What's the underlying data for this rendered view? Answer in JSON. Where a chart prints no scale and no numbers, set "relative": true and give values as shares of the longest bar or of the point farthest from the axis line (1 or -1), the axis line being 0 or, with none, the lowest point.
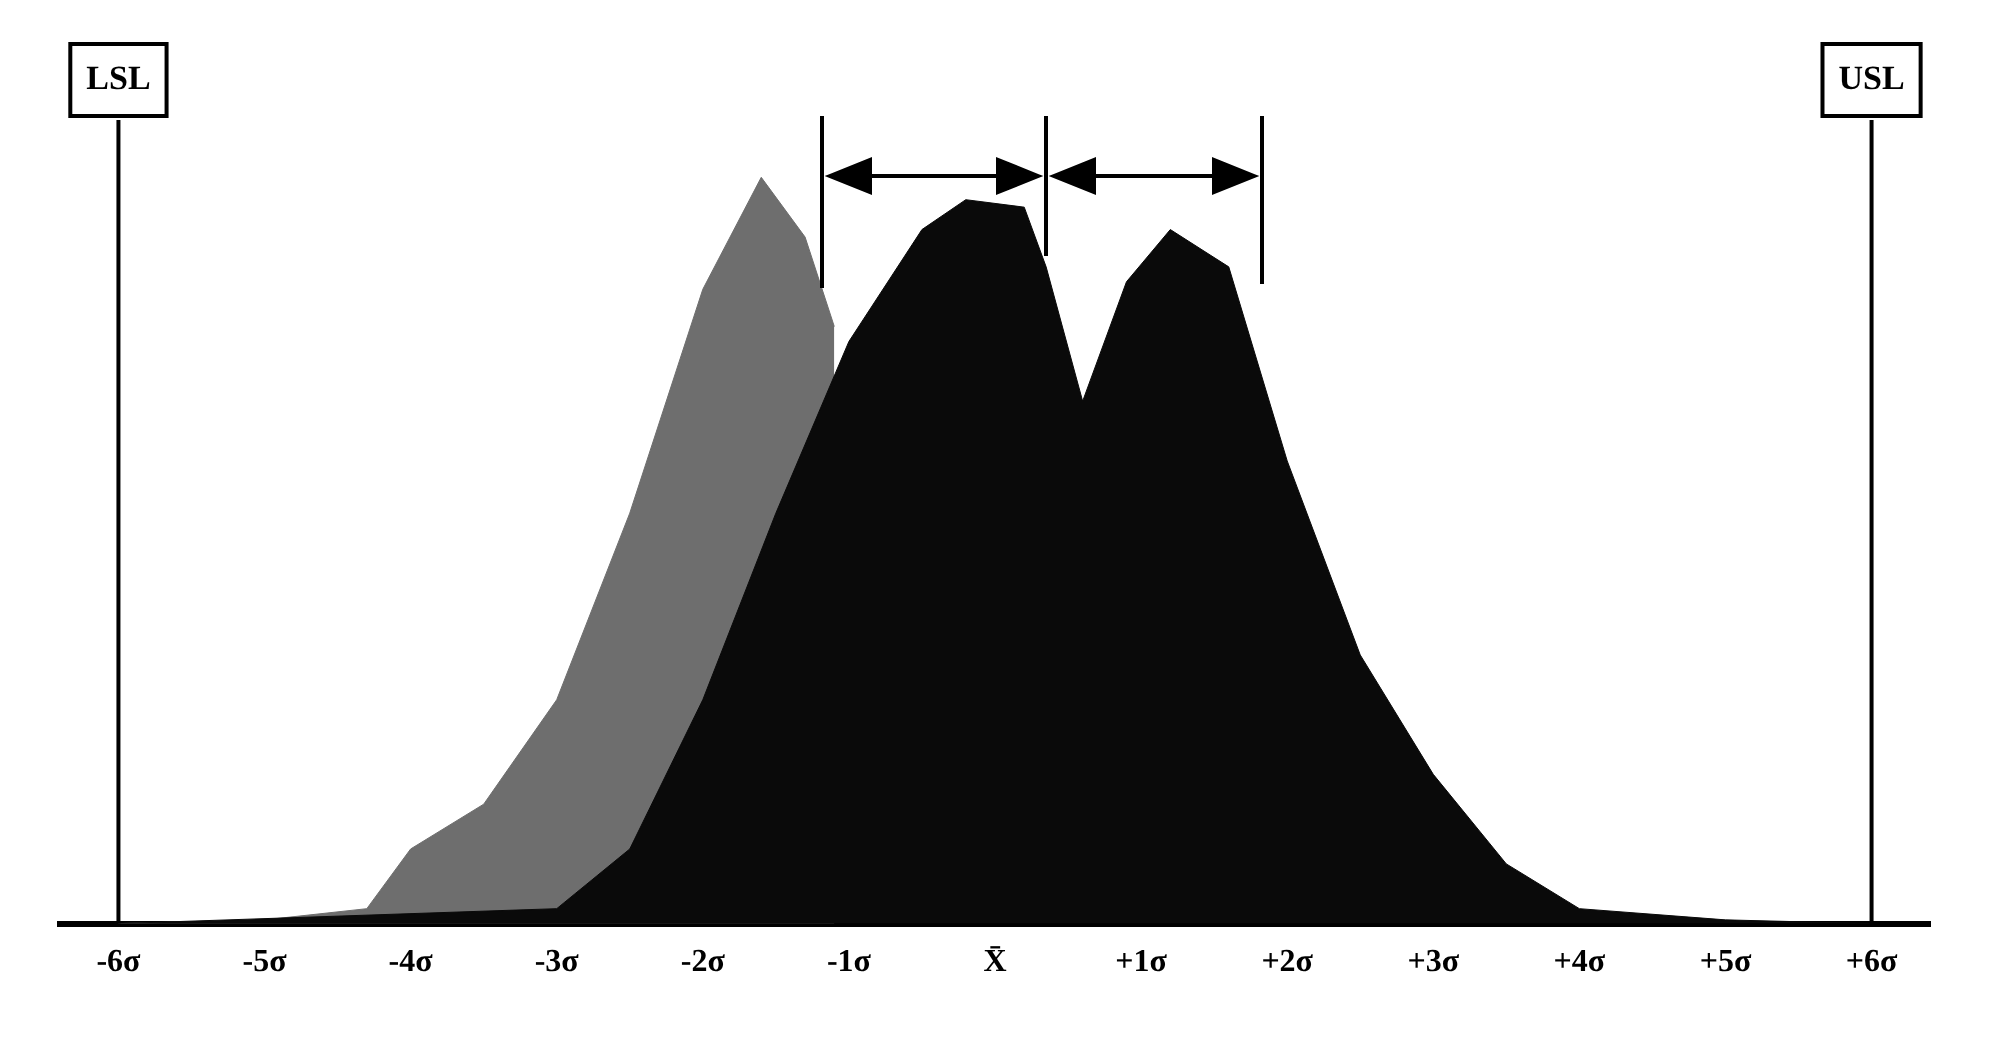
{
  "chart_data": {
    "type": "area",
    "relative": true,
    "grid": false,
    "legend": false,
    "xlim": [
      -6.4,
      6.4
    ],
    "xticks": [
      {
        "value": -6,
        "label": "-6σ"
      },
      {
        "value": -5,
        "label": "-5σ"
      },
      {
        "value": -4,
        "label": "-4σ"
      },
      {
        "value": -3,
        "label": "-3σ"
      },
      {
        "value": -2,
        "label": "-2σ"
      },
      {
        "value": -1,
        "label": "-1σ"
      },
      {
        "value": 0,
        "label": "X̄"
      },
      {
        "value": 1,
        "label": "+1σ"
      },
      {
        "value": 2,
        "label": "+2σ"
      },
      {
        "value": 3,
        "label": "+3σ"
      },
      {
        "value": 4,
        "label": "+4σ"
      },
      {
        "value": 5,
        "label": "+5σ"
      },
      {
        "value": 6,
        "label": "+6σ"
      }
    ],
    "series": [
      {
        "color": "#6e6e6e",
        "x": [
          -6,
          -5,
          -4.3,
          -4,
          -3.5,
          -3,
          -2.5,
          -2,
          -1.6,
          -1.3,
          -1.1
        ],
        "values": [
          0,
          0.005,
          0.02,
          0.1,
          0.16,
          0.3,
          0.55,
          0.85,
          1,
          0.92,
          0.8
        ]
      },
      {
        "color": "#0a0a0a",
        "x": [
          -6,
          -3,
          -2.5,
          -2,
          -1.5,
          -1,
          -0.5,
          -0.2,
          0.2,
          0.35,
          0.6,
          0.9,
          1.2,
          1.6,
          2,
          2.5,
          3,
          3.5,
          4,
          5,
          6
        ],
        "values": [
          0,
          0.02,
          0.1,
          0.3,
          0.55,
          0.78,
          0.93,
          0.97,
          0.96,
          0.88,
          0.7,
          0.86,
          0.93,
          0.88,
          0.62,
          0.36,
          0.2,
          0.08,
          0.02,
          0.005,
          0
        ]
      }
    ],
    "ref_lines": [
      {
        "axis": "x",
        "value": -6,
        "label": "LSL"
      },
      {
        "axis": "x",
        "value": 6,
        "label": "USL"
      }
    ]
  }
}
